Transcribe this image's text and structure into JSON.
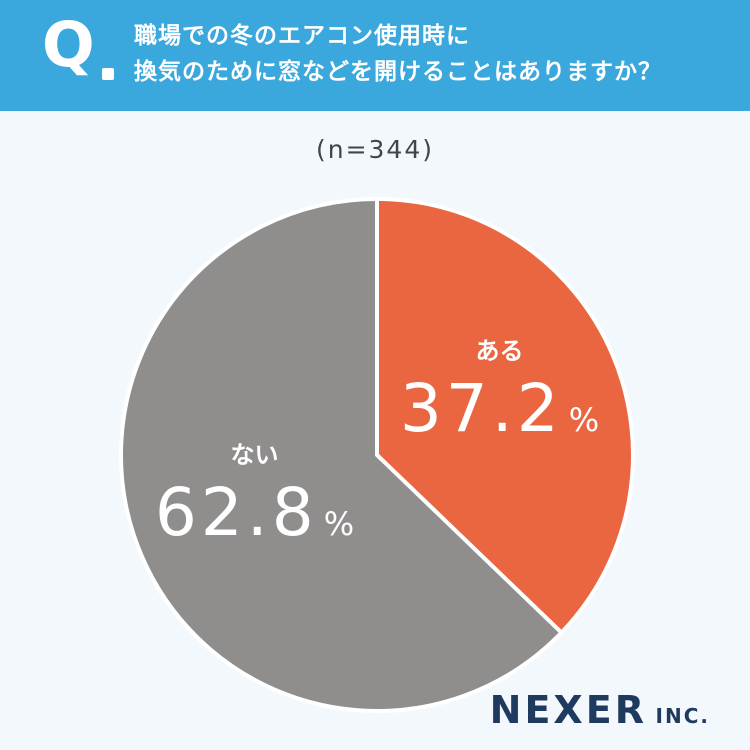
{
  "header": {
    "q_mark": "Q",
    "question_line1": "職場での冬のエアコン使用時に",
    "question_line2": "換気のために窓などを開けることはありますか？"
  },
  "sample_size": "(n=344)",
  "brand": {
    "name": "NEXER",
    "suffix": "INC."
  },
  "colors": {
    "header_bg": "#3aa7dd",
    "page_bg": "#f3f8fc",
    "yes": "#e96640",
    "no": "#908d8d",
    "brand": "#1f3a5f"
  },
  "chart_data": {
    "type": "pie",
    "slices": [
      {
        "label": "ある",
        "value": 37.2,
        "display": "37.2",
        "unit": "%",
        "color": "#e96640"
      },
      {
        "label": "ない",
        "value": 62.8,
        "display": "62.8",
        "unit": "%",
        "color": "#908d8d"
      }
    ],
    "start": "12 o'clock",
    "direction": "clockwise"
  }
}
